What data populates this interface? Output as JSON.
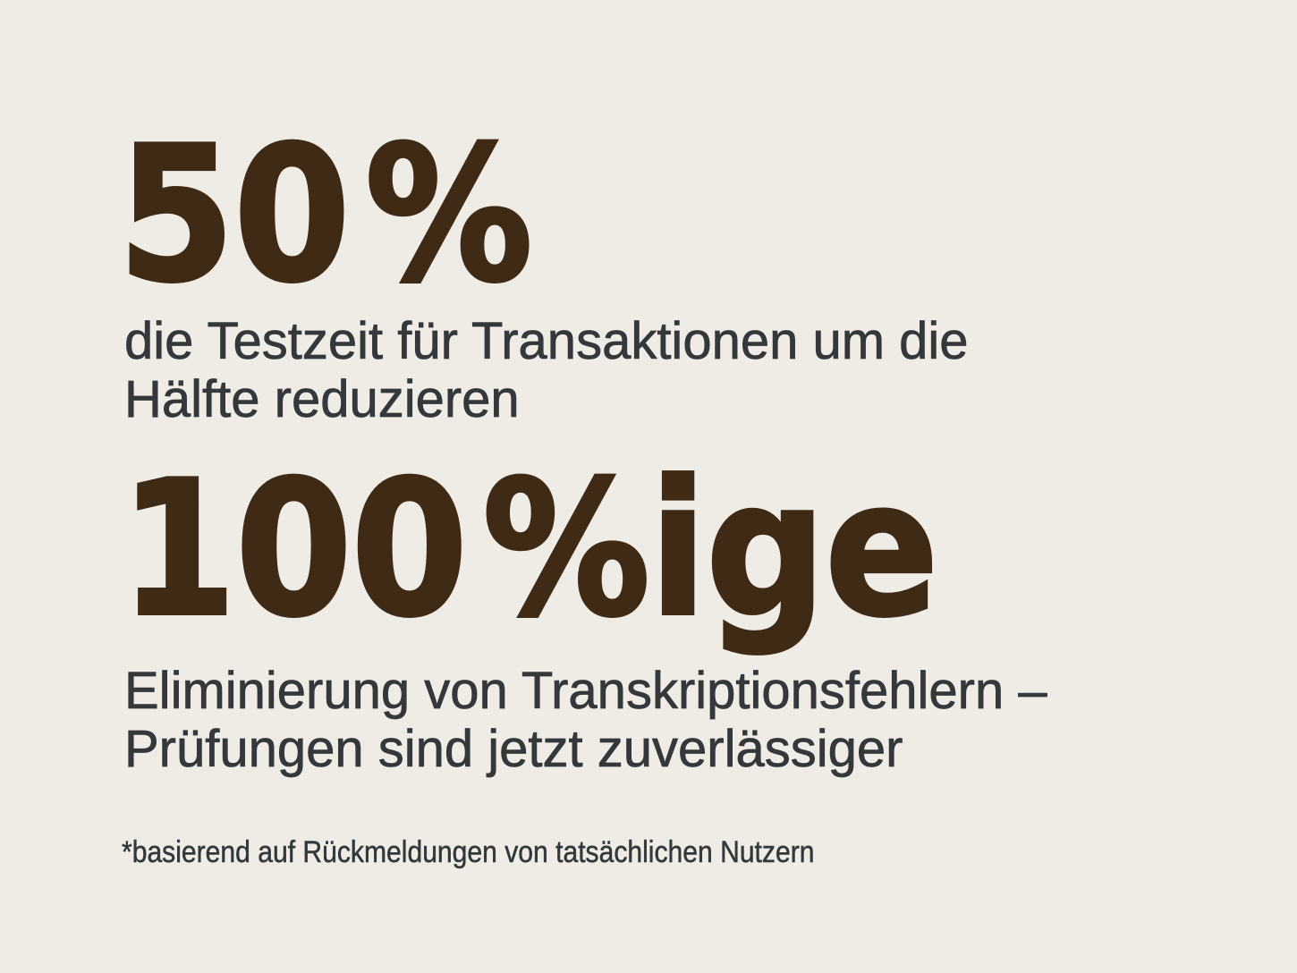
{
  "colors": {
    "background": "#efebe5",
    "stat": "#3e2a15",
    "text": "#34383a"
  },
  "stats": [
    {
      "value": "50 %",
      "description_lines": [
        "die Testzeit für Transaktionen um die",
        "Hälfte reduzieren"
      ]
    },
    {
      "value": "100 %ige",
      "description_lines": [
        "Eliminierung von Transkriptionsfehlern –",
        "Prüfungen sind jetzt zuverlässiger"
      ]
    }
  ],
  "footnote": "*basierend auf Rückmeldungen von tatsächlichen Nutzern"
}
